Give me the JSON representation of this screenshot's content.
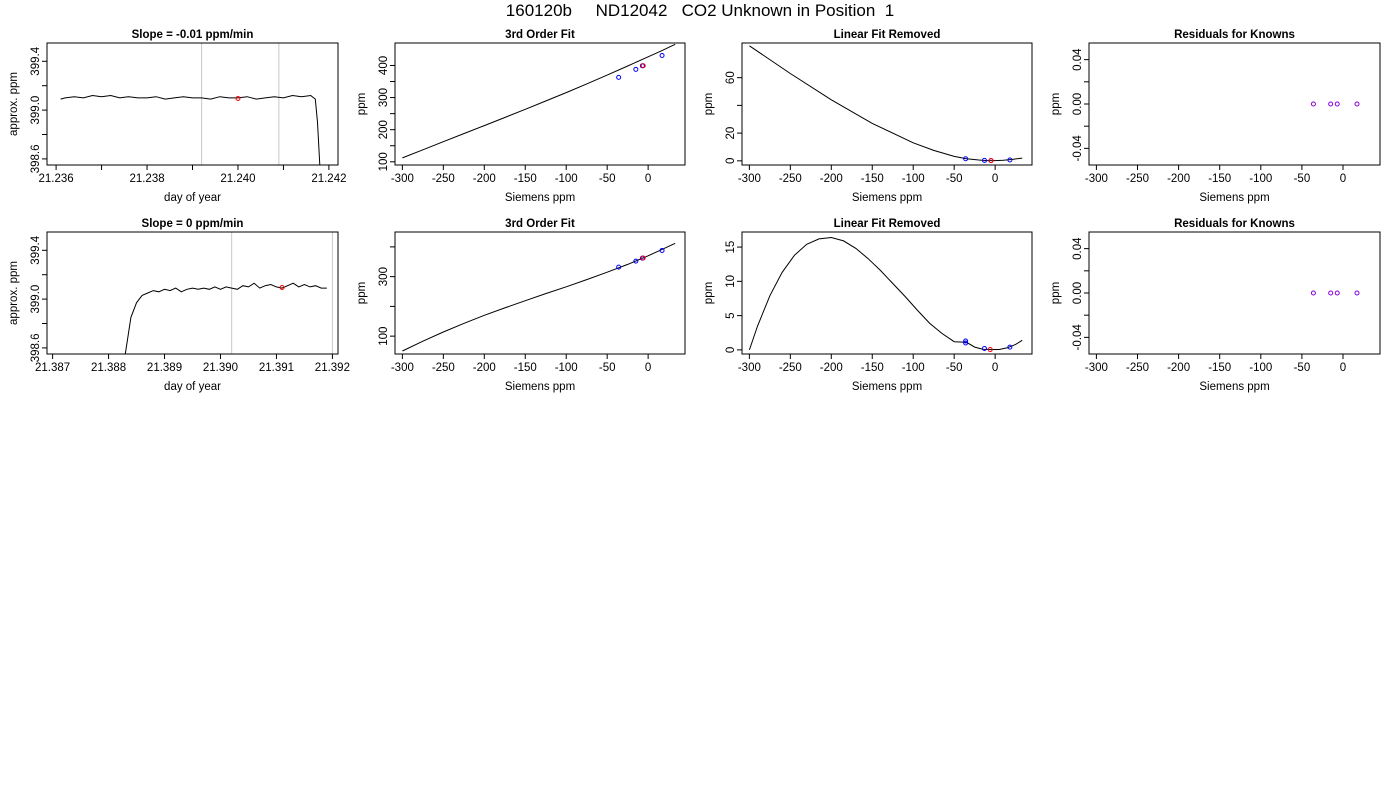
{
  "page_title": "160120b     ND12042   CO2 Unknown in Position  1",
  "chart_data": [
    {
      "type": "line",
      "title": "Slope =  -0.01  ppm/min",
      "xlabel": "day of year",
      "ylabel": "approx. ppm",
      "xlim": [
        21.2358,
        21.2422
      ],
      "ylim": [
        398.55,
        399.55
      ],
      "xticks": [
        "21.236",
        "21.238",
        "21.240",
        "21.242"
      ],
      "xtick_values": [
        21.236,
        21.238,
        21.24,
        21.242
      ],
      "xminor_values": [
        21.237,
        21.239,
        21.241
      ],
      "yticks": [
        "398.6",
        "399.0",
        "399.4"
      ],
      "ytick_values": [
        398.6,
        399.0,
        399.4
      ],
      "yminor_values": [
        398.8,
        399.2
      ],
      "vlines": [
        21.2392,
        21.2409
      ],
      "marker_color": "#ff0000",
      "markers": [
        {
          "x": 21.24,
          "y": 399.095
        }
      ],
      "series": [
        {
          "x": [
            21.2361,
            21.2362,
            21.2364,
            21.2366,
            21.2368,
            21.237,
            21.2372,
            21.2374,
            21.2376,
            21.2378,
            21.238,
            21.2382,
            21.2384,
            21.2386,
            21.2388,
            21.239,
            21.2392,
            21.2394,
            21.2396,
            21.2398,
            21.24,
            21.2402,
            21.2404,
            21.2406,
            21.2408,
            21.241,
            21.2412,
            21.2414,
            21.2416,
            21.2417,
            21.24175,
            21.2418
          ],
          "values": [
            399.09,
            399.1,
            399.11,
            399.1,
            399.12,
            399.11,
            399.12,
            399.1,
            399.11,
            399.1,
            399.1,
            399.11,
            399.09,
            399.1,
            399.11,
            399.1,
            399.1,
            399.09,
            399.11,
            399.1,
            399.1,
            399.11,
            399.09,
            399.1,
            399.11,
            399.1,
            399.12,
            399.11,
            399.12,
            399.09,
            398.9,
            398.55
          ]
        }
      ]
    },
    {
      "type": "line",
      "title": "3rd Order Fit",
      "xlabel": "Siemens ppm",
      "ylabel": "ppm",
      "xlim": [
        -309,
        45
      ],
      "ylim": [
        90,
        470
      ],
      "xticks": [
        "-300",
        "-250",
        "-200",
        "-150",
        "-100",
        "-50",
        "0"
      ],
      "xtick_values": [
        -300,
        -250,
        -200,
        -150,
        -100,
        -50,
        0
      ],
      "yticks": [
        "100",
        "200",
        "300",
        "400"
      ],
      "ytick_values": [
        100,
        200,
        300,
        400
      ],
      "yminor_values": [
        150,
        250,
        350
      ],
      "series": [
        {
          "x": [
            -300,
            -275,
            -250,
            -225,
            -200,
            -175,
            -150,
            -125,
            -100,
            -75,
            -50,
            -25,
            0,
            15,
            33
          ],
          "values": [
            112,
            137.5,
            162.7,
            187.8,
            212.8,
            238,
            263.4,
            289.2,
            315.5,
            342.5,
            370,
            398.4,
            427,
            444,
            466
          ]
        }
      ],
      "known_color": "#0000ff",
      "known_points": [
        {
          "x": -36,
          "y": 363
        },
        {
          "x": -15,
          "y": 388
        },
        {
          "x": -7,
          "y": 399
        },
        {
          "x": 17,
          "y": 431
        }
      ],
      "unknown_color": "#ff0000",
      "unknown_points": [
        {
          "x": -6,
          "y": 399.1
        }
      ]
    },
    {
      "type": "line",
      "title": "Linear Fit Removed",
      "xlabel": "Siemens ppm",
      "ylabel": "ppm",
      "xlim": [
        -309,
        45
      ],
      "ylim": [
        -3,
        85
      ],
      "xticks": [
        "-300",
        "-250",
        "-200",
        "-150",
        "-100",
        "-50",
        "0"
      ],
      "xtick_values": [
        -300,
        -250,
        -200,
        -150,
        -100,
        -50,
        0
      ],
      "yticks": [
        "0",
        "20",
        "60"
      ],
      "ytick_values": [
        0,
        20,
        60
      ],
      "yminor_values": [
        40
      ],
      "series": [
        {
          "x": [
            -300,
            -250,
            -200,
            -150,
            -100,
            -75,
            -50,
            -35,
            -20,
            -10,
            0,
            10,
            20,
            33
          ],
          "values": [
            83,
            63,
            44,
            27,
            13,
            7.5,
            3.2,
            1.5,
            0.6,
            0.2,
            0.2,
            0.4,
            1,
            2
          ]
        }
      ],
      "known_color": "#0000ff",
      "known_points": [
        {
          "x": -36,
          "y": 1.5
        },
        {
          "x": -13,
          "y": 0.3
        },
        {
          "x": -5,
          "y": 0.2
        },
        {
          "x": 18,
          "y": 0.6
        }
      ],
      "unknown_color": "#ff0000",
      "unknown_points": [
        {
          "x": -5,
          "y": 0.2
        }
      ]
    },
    {
      "type": "scatter",
      "title": "Residuals for Knowns",
      "xlabel": "Siemens ppm",
      "ylabel": "ppm",
      "xlim": [
        -309,
        45
      ],
      "ylim": [
        -0.055,
        0.055
      ],
      "xticks": [
        "-300",
        "-250",
        "-200",
        "-150",
        "-100",
        "-50",
        "0"
      ],
      "xtick_values": [
        -300,
        -250,
        -200,
        -150,
        -100,
        -50,
        0
      ],
      "yticks": [
        "-0.04",
        "0.00",
        "0.04"
      ],
      "ytick_values": [
        -0.04,
        0.0,
        0.04
      ],
      "yminor_values": [
        -0.02,
        0.02
      ],
      "marker_color": "#8800dd",
      "points": [
        {
          "x": -36,
          "y": 0
        },
        {
          "x": -15,
          "y": 0
        },
        {
          "x": -7,
          "y": 0
        },
        {
          "x": 17,
          "y": 0
        }
      ]
    },
    {
      "type": "line",
      "title": "Slope =  0  ppm/min",
      "xlabel": "day of year",
      "ylabel": "approx. ppm",
      "xlim": [
        21.3869,
        21.3921
      ],
      "ylim": [
        398.55,
        399.55
      ],
      "xticks": [
        "21.387",
        "21.388",
        "21.389",
        "21.390",
        "21.391",
        "21.392"
      ],
      "xtick_values": [
        21.387,
        21.388,
        21.389,
        21.39,
        21.391,
        21.392
      ],
      "yticks": [
        "398.6",
        "399.0",
        "399.4"
      ],
      "ytick_values": [
        398.6,
        399.0,
        399.4
      ],
      "yminor_values": [
        398.8,
        399.2
      ],
      "vlines": [
        21.3902,
        21.392
      ],
      "marker_color": "#ff0000",
      "markers": [
        {
          "x": 21.3911,
          "y": 399.095
        }
      ],
      "series": [
        {
          "x": [
            21.3883,
            21.38835,
            21.3884,
            21.3885,
            21.3886,
            21.3887,
            21.3888,
            21.3889,
            21.389,
            21.3891,
            21.3892,
            21.3893,
            21.3894,
            21.3895,
            21.3896,
            21.3897,
            21.3898,
            21.3899,
            21.39,
            21.3901,
            21.3902,
            21.3903,
            21.3904,
            21.3905,
            21.3906,
            21.3907,
            21.3908,
            21.3909,
            21.391,
            21.3911,
            21.3912,
            21.3913,
            21.3914,
            21.3915,
            21.3916,
            21.3917,
            21.3918,
            21.3919
          ],
          "values": [
            398.55,
            398.7,
            398.85,
            398.97,
            399.03,
            399.05,
            399.07,
            399.06,
            399.08,
            399.07,
            399.09,
            399.06,
            399.08,
            399.09,
            399.08,
            399.09,
            399.08,
            399.1,
            399.08,
            399.1,
            399.09,
            399.08,
            399.11,
            399.1,
            399.13,
            399.09,
            399.11,
            399.12,
            399.1,
            399.09,
            399.11,
            399.13,
            399.1,
            399.12,
            399.1,
            399.11,
            399.09,
            399.09
          ]
        }
      ]
    },
    {
      "type": "line",
      "title": "3rd Order Fit",
      "xlabel": "Siemens ppm",
      "ylabel": "ppm",
      "xlim": [
        -309,
        45
      ],
      "ylim": [
        40,
        450
      ],
      "xticks": [
        "-300",
        "-250",
        "-200",
        "-150",
        "-100",
        "-50",
        "0"
      ],
      "xtick_values": [
        -300,
        -250,
        -200,
        -150,
        -100,
        -50,
        0
      ],
      "yticks": [
        "100",
        "300"
      ],
      "ytick_values": [
        100,
        300
      ],
      "yminor_values": [
        200,
        400
      ],
      "series": [
        {
          "x": [
            -300,
            -275,
            -250,
            -225,
            -200,
            -175,
            -150,
            -125,
            -100,
            -75,
            -50,
            -25,
            0,
            15,
            33
          ],
          "values": [
            50,
            83,
            114,
            143,
            170,
            195,
            219,
            243,
            266,
            290,
            315,
            341,
            370,
            389,
            412
          ]
        }
      ],
      "known_color": "#0000ff",
      "known_points": [
        {
          "x": -36,
          "y": 332
        },
        {
          "x": -15,
          "y": 352
        },
        {
          "x": -7,
          "y": 362
        },
        {
          "x": 17,
          "y": 388
        }
      ],
      "unknown_color": "#ff0000",
      "unknown_points": [
        {
          "x": -6,
          "y": 362.5
        }
      ]
    },
    {
      "type": "line",
      "title": "Linear Fit Removed",
      "xlabel": "Siemens ppm",
      "ylabel": "ppm",
      "xlim": [
        -309,
        45
      ],
      "ylim": [
        -0.6,
        17.2
      ],
      "xticks": [
        "-300",
        "-250",
        "-200",
        "-150",
        "-100",
        "-50",
        "0"
      ],
      "xtick_values": [
        -300,
        -250,
        -200,
        -150,
        -100,
        -50,
        0
      ],
      "yticks": [
        "0",
        "5",
        "10",
        "15"
      ],
      "ytick_values": [
        0,
        5,
        10,
        15
      ],
      "series": [
        {
          "x": [
            -300,
            -290,
            -275,
            -260,
            -245,
            -230,
            -215,
            -200,
            -185,
            -170,
            -155,
            -140,
            -125,
            -110,
            -95,
            -80,
            -65,
            -50,
            -35,
            -25,
            -15,
            -5,
            5,
            15,
            25,
            33
          ],
          "values": [
            0,
            3.5,
            7.9,
            11.3,
            13.8,
            15.4,
            16.2,
            16.4,
            15.9,
            14.8,
            13.3,
            11.6,
            9.7,
            7.8,
            5.8,
            3.9,
            2.4,
            1.2,
            1.1,
            0.4,
            0.1,
            0.05,
            0.05,
            0.3,
            0.8,
            1.4
          ]
        }
      ],
      "known_color": "#0000ff",
      "known_points": [
        {
          "x": -36,
          "y": 1.3
        },
        {
          "x": -36,
          "y": 1.0
        },
        {
          "x": -13,
          "y": 0.2
        },
        {
          "x": 18,
          "y": 0.4
        }
      ],
      "unknown_color": "#ff0000",
      "unknown_points": [
        {
          "x": -6,
          "y": 0.05
        }
      ]
    },
    {
      "type": "scatter",
      "title": "Residuals for Knowns",
      "xlabel": "Siemens ppm",
      "ylabel": "ppm",
      "xlim": [
        -309,
        45
      ],
      "ylim": [
        -0.055,
        0.055
      ],
      "xticks": [
        "-300",
        "-250",
        "-200",
        "-150",
        "-100",
        "-50",
        "0"
      ],
      "xtick_values": [
        -300,
        -250,
        -200,
        -150,
        -100,
        -50,
        0
      ],
      "yticks": [
        "-0.04",
        "0.00",
        "0.04"
      ],
      "ytick_values": [
        -0.04,
        0.0,
        0.04
      ],
      "yminor_values": [
        -0.02,
        0.02
      ],
      "marker_color": "#8800dd",
      "points": [
        {
          "x": -36,
          "y": 0
        },
        {
          "x": -15,
          "y": 0
        },
        {
          "x": -7,
          "y": 0
        },
        {
          "x": 17,
          "y": 0
        }
      ]
    }
  ]
}
